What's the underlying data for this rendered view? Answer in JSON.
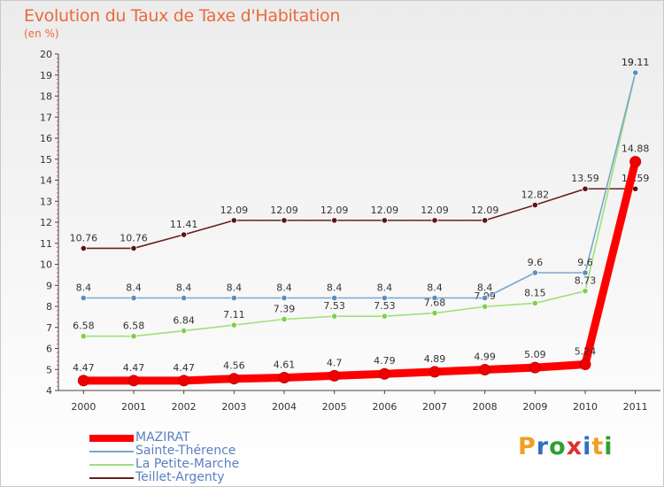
{
  "chart_data": {
    "type": "line",
    "title": "Evolution du Taux de Taxe d'Habitation",
    "subtitle": "(en %)",
    "categories": [
      "2000",
      "2001",
      "2002",
      "2003",
      "2004",
      "2005",
      "2006",
      "2007",
      "2008",
      "2009",
      "2010",
      "2011"
    ],
    "ylim": [
      4,
      20
    ],
    "yticks": [
      4,
      5,
      6,
      7,
      8,
      9,
      10,
      11,
      12,
      13,
      14,
      15,
      16,
      17,
      18,
      19,
      20
    ],
    "grid": false,
    "legend_position": "bottom-left",
    "series": [
      {
        "name": "Teillet-Argenty",
        "color": "#6b1f1f",
        "marker": "#5a1515",
        "values": [
          10.76,
          10.76,
          11.41,
          12.09,
          12.09,
          12.09,
          12.09,
          12.09,
          12.09,
          12.82,
          13.59,
          13.59
        ],
        "labels": [
          "10.76",
          "10.76",
          "11.41",
          "12.09",
          "12.09",
          "12.09",
          "12.09",
          "12.09",
          "12.09",
          "12.82",
          "13.59",
          "13.59"
        ]
      },
      {
        "name": "La Petite-Marche",
        "color": "#9fe07a",
        "marker": "#7fd04a",
        "values": [
          6.58,
          6.58,
          6.84,
          7.11,
          7.39,
          7.53,
          7.53,
          7.68,
          7.99,
          8.15,
          8.73,
          19.11
        ],
        "labels": [
          "6.58",
          "6.58",
          "6.84",
          "7.11",
          "7.39",
          "7.53",
          "7.53",
          "7.68",
          "7.99",
          "8.15",
          "8.73",
          "19.11"
        ]
      },
      {
        "name": "Sainte-Thérence",
        "color": "#7aa6cc",
        "marker": "#5a8fc0",
        "values": [
          8.4,
          8.4,
          8.4,
          8.4,
          8.4,
          8.4,
          8.4,
          8.4,
          8.4,
          9.6,
          9.6,
          19.11
        ],
        "labels": [
          "8.4",
          "8.4",
          "8.4",
          "8.4",
          "8.4",
          "8.4",
          "8.4",
          "8.4",
          "8.4",
          "9.6",
          "9.6",
          "19.11"
        ]
      },
      {
        "name": "MAZIRAT",
        "color": "#ff0000",
        "marker": "#ee0000",
        "values": [
          4.47,
          4.47,
          4.47,
          4.56,
          4.61,
          4.7,
          4.79,
          4.89,
          4.99,
          5.09,
          5.24,
          14.88
        ],
        "labels": [
          "4.47",
          "4.47",
          "4.47",
          "4.56",
          "4.61",
          "4.7",
          "4.79",
          "4.89",
          "4.99",
          "5.09",
          "5.24",
          "14.88"
        ]
      }
    ]
  },
  "legend": [
    {
      "name": "MAZIRAT",
      "color": "#ff0000",
      "thickness": 8
    },
    {
      "name": "Sainte-Thérence",
      "color": "#7aa6cc",
      "thickness": 2
    },
    {
      "name": "La Petite-Marche",
      "color": "#9fe07a",
      "thickness": 2
    },
    {
      "name": "Teillet-Argenty",
      "color": "#6b1f1f",
      "thickness": 2
    }
  ],
  "logo": {
    "letters": [
      "P",
      "r",
      "o",
      "x",
      "i",
      "t",
      "i"
    ],
    "colors": [
      "#f0a020",
      "#3070c0",
      "#30a030",
      "#e03030",
      "#3070c0",
      "#f0a020",
      "#30a030"
    ]
  }
}
